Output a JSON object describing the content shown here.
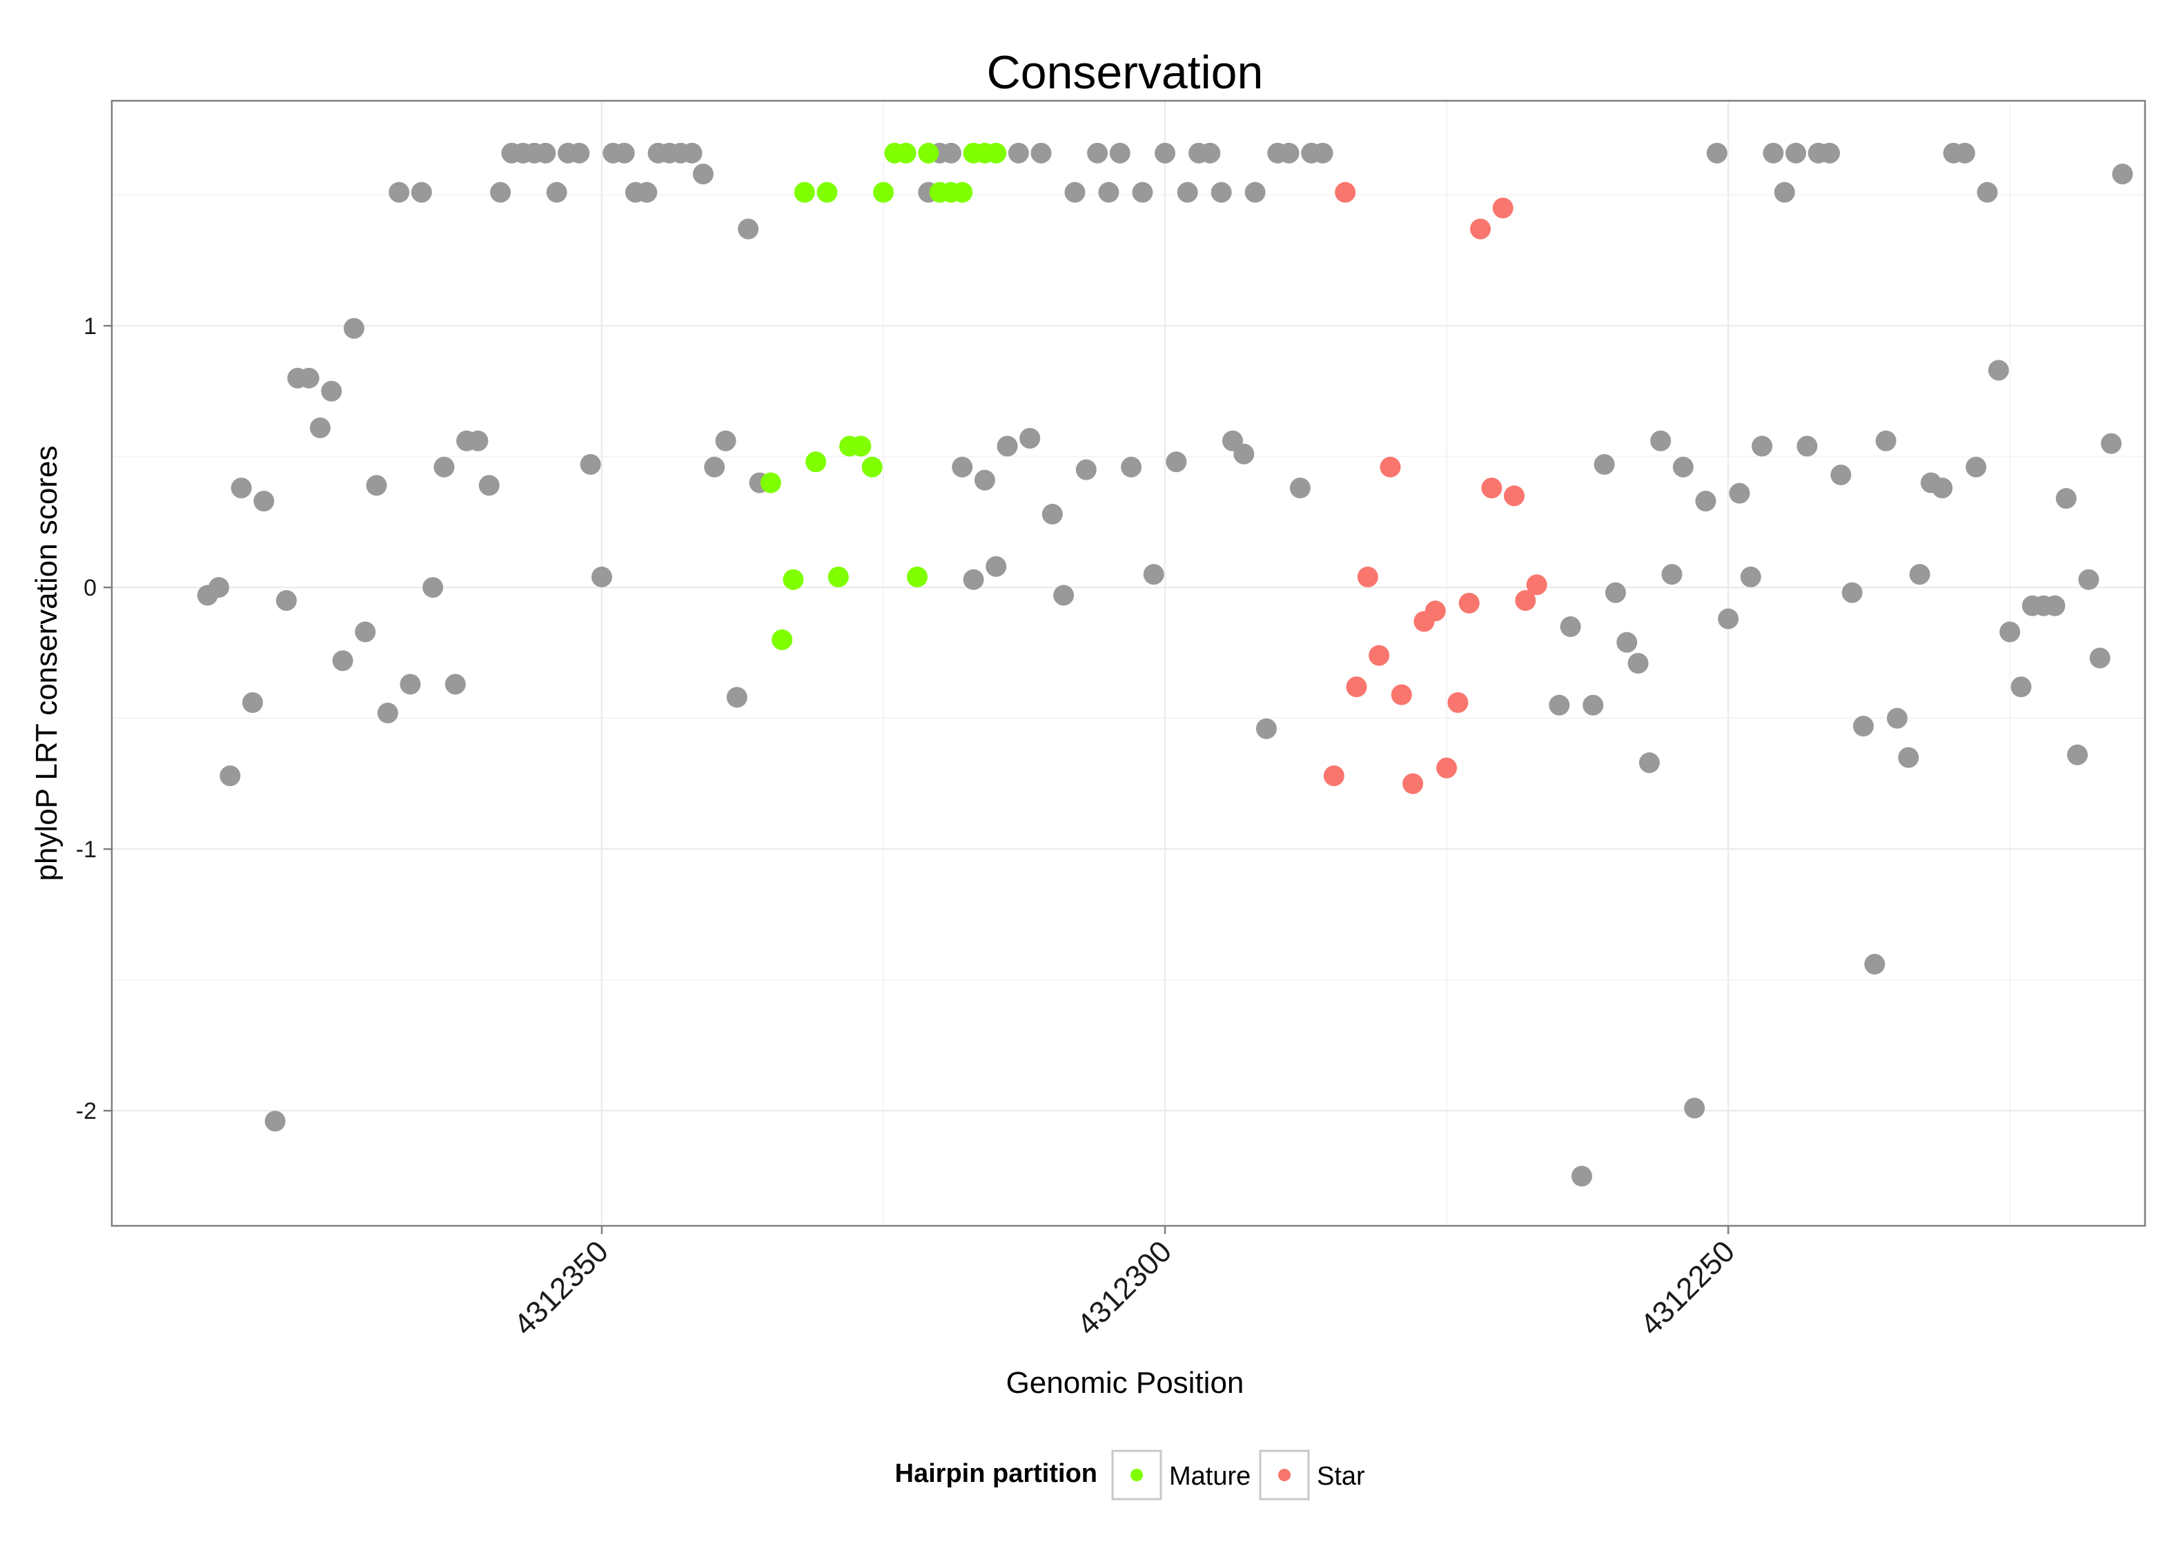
{
  "chart_data": {
    "type": "scatter",
    "title": "Conservation",
    "xlabel": "Genomic Position",
    "ylabel": "phyloP LRT conservation scores",
    "x_reversed": true,
    "xlim": [
      4312393.5,
      4312213
    ],
    "ylim": [
      -2.44,
      1.86
    ],
    "x_ticks": [
      4312350,
      4312300,
      4312250
    ],
    "x_tick_labels": [
      "4312350",
      "4312300",
      "4312250"
    ],
    "y_ticks": [
      1,
      0,
      -1,
      -2
    ],
    "y_tick_labels": [
      "1",
      "0",
      "-1",
      "-2"
    ],
    "grid": true,
    "legend": {
      "title": "Hairpin partition",
      "position": "bottom",
      "entries": [
        {
          "label": "Mature",
          "color": "#7FFF00"
        },
        {
          "label": "Star",
          "color": "#F8766D"
        }
      ]
    },
    "colors": {
      "other": "#999999",
      "mature": "#7FFF00",
      "star": "#F8766D"
    },
    "series": [
      {
        "name": "Other",
        "points": [
          [
            4312385,
            -0.03
          ],
          [
            4312384,
            0.0
          ],
          [
            4312383,
            -0.72
          ],
          [
            4312382,
            0.38
          ],
          [
            4312381,
            -0.44
          ],
          [
            4312380,
            0.33
          ],
          [
            4312379,
            -2.04
          ],
          [
            4312378,
            -0.05
          ],
          [
            4312377,
            0.8
          ],
          [
            4312376,
            0.8
          ],
          [
            4312375,
            0.61
          ],
          [
            4312374,
            0.75
          ],
          [
            4312373,
            -0.28
          ],
          [
            4312372,
            0.99
          ],
          [
            4312371,
            -0.17
          ],
          [
            4312370,
            0.39
          ],
          [
            4312369,
            -0.48
          ],
          [
            4312368,
            1.51
          ],
          [
            4312367,
            -0.37
          ],
          [
            4312366,
            1.51
          ],
          [
            4312365,
            0.0
          ],
          [
            4312364,
            0.46
          ],
          [
            4312363,
            -0.37
          ],
          [
            4312362,
            0.56
          ],
          [
            4312361,
            0.56
          ],
          [
            4312360,
            0.39
          ],
          [
            4312359,
            1.51
          ],
          [
            4312358,
            1.66
          ],
          [
            4312357,
            1.66
          ],
          [
            4312356,
            1.66
          ],
          [
            4312355,
            1.66
          ],
          [
            4312354,
            1.51
          ],
          [
            4312353,
            1.66
          ],
          [
            4312352,
            1.66
          ],
          [
            4312351,
            0.47
          ],
          [
            4312350,
            0.04
          ],
          [
            4312349,
            1.66
          ],
          [
            4312348,
            1.66
          ],
          [
            4312347,
            1.51
          ],
          [
            4312346,
            1.51
          ],
          [
            4312345,
            1.66
          ],
          [
            4312344,
            1.66
          ],
          [
            4312343,
            1.66
          ],
          [
            4312342,
            1.66
          ],
          [
            4312341,
            1.58
          ],
          [
            4312340,
            0.46
          ],
          [
            4312339,
            0.56
          ],
          [
            4312338,
            -0.42
          ],
          [
            4312337,
            1.37
          ],
          [
            4312336,
            0.4
          ],
          [
            4312321,
            1.51
          ],
          [
            4312320,
            1.66
          ],
          [
            4312319,
            1.66
          ],
          [
            4312318,
            0.46
          ],
          [
            4312317,
            0.03
          ],
          [
            4312316,
            0.41
          ],
          [
            4312315,
            0.08
          ],
          [
            4312314,
            0.54
          ],
          [
            4312313,
            1.66
          ],
          [
            4312312,
            0.57
          ],
          [
            4312311,
            1.66
          ],
          [
            4312310,
            0.28
          ],
          [
            4312309,
            -0.03
          ],
          [
            4312308,
            1.51
          ],
          [
            4312307,
            0.45
          ],
          [
            4312306,
            1.66
          ],
          [
            4312305,
            1.51
          ],
          [
            4312304,
            1.66
          ],
          [
            4312303,
            0.46
          ],
          [
            4312302,
            1.51
          ],
          [
            4312301,
            0.05
          ],
          [
            4312300,
            1.66
          ],
          [
            4312299,
            0.48
          ],
          [
            4312298,
            1.51
          ],
          [
            4312297,
            1.66
          ],
          [
            4312296,
            1.66
          ],
          [
            4312295,
            1.51
          ],
          [
            4312294,
            0.56
          ],
          [
            4312293,
            0.51
          ],
          [
            4312292,
            1.51
          ],
          [
            4312291,
            -0.54
          ],
          [
            4312290,
            1.66
          ],
          [
            4312289,
            1.66
          ],
          [
            4312288,
            0.38
          ],
          [
            4312287,
            1.66
          ],
          [
            4312286,
            1.66
          ],
          [
            4312265,
            -0.45
          ],
          [
            4312264,
            -0.15
          ],
          [
            4312263,
            -2.25
          ],
          [
            4312262,
            -0.45
          ],
          [
            4312261,
            0.47
          ],
          [
            4312260,
            -0.02
          ],
          [
            4312259,
            -0.21
          ],
          [
            4312258,
            -0.29
          ],
          [
            4312257,
            -0.67
          ],
          [
            4312256,
            0.56
          ],
          [
            4312255,
            0.05
          ],
          [
            4312254,
            0.46
          ],
          [
            4312253,
            -1.99
          ],
          [
            4312252,
            0.33
          ],
          [
            4312251,
            1.66
          ],
          [
            4312250,
            -0.12
          ],
          [
            4312249,
            0.36
          ],
          [
            4312248,
            0.04
          ],
          [
            4312247,
            0.54
          ],
          [
            4312246,
            1.66
          ],
          [
            4312245,
            1.51
          ],
          [
            4312244,
            1.66
          ],
          [
            4312243,
            0.54
          ],
          [
            4312242,
            1.66
          ],
          [
            4312241,
            1.66
          ],
          [
            4312240,
            0.43
          ],
          [
            4312239,
            -0.02
          ],
          [
            4312238,
            -0.53
          ],
          [
            4312237,
            -1.44
          ],
          [
            4312236,
            0.56
          ],
          [
            4312235,
            -0.5
          ],
          [
            4312234,
            -0.65
          ],
          [
            4312233,
            0.05
          ],
          [
            4312232,
            0.4
          ],
          [
            4312231,
            0.38
          ],
          [
            4312230,
            1.66
          ],
          [
            4312229,
            1.66
          ],
          [
            4312228,
            0.46
          ],
          [
            4312227,
            1.51
          ],
          [
            4312226,
            0.83
          ],
          [
            4312225,
            -0.17
          ],
          [
            4312224,
            -0.38
          ],
          [
            4312223,
            -0.07
          ],
          [
            4312222,
            -0.07
          ],
          [
            4312221,
            -0.07
          ],
          [
            4312220,
            0.34
          ],
          [
            4312219,
            -0.64
          ],
          [
            4312218,
            0.03
          ],
          [
            4312217,
            -0.27
          ],
          [
            4312216,
            0.55
          ],
          [
            4312215,
            1.58
          ]
        ]
      },
      {
        "name": "Mature",
        "points": [
          [
            4312335,
            0.4
          ],
          [
            4312334,
            -0.2
          ],
          [
            4312333,
            0.03
          ],
          [
            4312332,
            1.51
          ],
          [
            4312331,
            0.48
          ],
          [
            4312330,
            1.51
          ],
          [
            4312329,
            0.04
          ],
          [
            4312328,
            0.54
          ],
          [
            4312327,
            0.54
          ],
          [
            4312326,
            0.46
          ],
          [
            4312325,
            1.51
          ],
          [
            4312324,
            1.66
          ],
          [
            4312323,
            1.66
          ],
          [
            4312322,
            0.04
          ],
          [
            4312321,
            1.66
          ],
          [
            4312320,
            1.51
          ],
          [
            4312319,
            1.51
          ],
          [
            4312318,
            1.51
          ],
          [
            4312317,
            1.66
          ],
          [
            4312316,
            1.66
          ],
          [
            4312315,
            1.66
          ]
        ]
      },
      {
        "name": "Star",
        "points": [
          [
            4312285,
            -0.72
          ],
          [
            4312284,
            1.51
          ],
          [
            4312283,
            -0.38
          ],
          [
            4312282,
            0.04
          ],
          [
            4312281,
            -0.26
          ],
          [
            4312280,
            0.46
          ],
          [
            4312279,
            -0.41
          ],
          [
            4312278,
            -0.75
          ],
          [
            4312277,
            -0.13
          ],
          [
            4312276,
            -0.09
          ],
          [
            4312275,
            -0.69
          ],
          [
            4312274,
            -0.44
          ],
          [
            4312273,
            -0.06
          ],
          [
            4312272,
            1.37
          ],
          [
            4312271,
            0.38
          ],
          [
            4312270,
            1.45
          ],
          [
            4312269,
            0.35
          ],
          [
            4312268,
            -0.05
          ],
          [
            4312267,
            0.01
          ]
        ]
      }
    ]
  }
}
